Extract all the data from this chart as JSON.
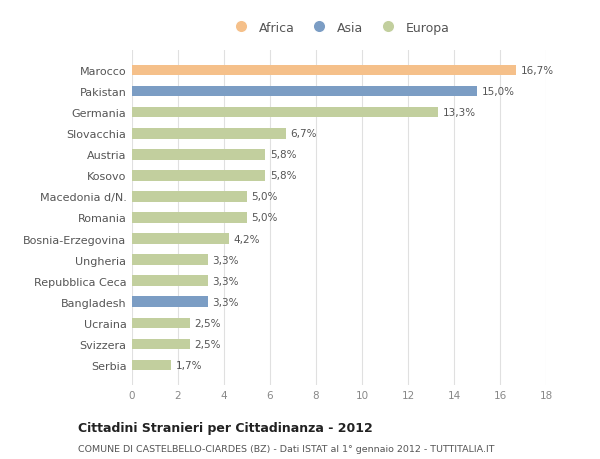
{
  "categories": [
    "Marocco",
    "Pakistan",
    "Germania",
    "Slovacchia",
    "Austria",
    "Kosovo",
    "Macedonia d/N.",
    "Romania",
    "Bosnia-Erzegovina",
    "Ungheria",
    "Repubblica Ceca",
    "Bangladesh",
    "Ucraina",
    "Svizzera",
    "Serbia"
  ],
  "values": [
    16.7,
    15.0,
    13.3,
    6.7,
    5.8,
    5.8,
    5.0,
    5.0,
    4.2,
    3.3,
    3.3,
    3.3,
    2.5,
    2.5,
    1.7
  ],
  "continents": [
    "Africa",
    "Asia",
    "Europa",
    "Europa",
    "Europa",
    "Europa",
    "Europa",
    "Europa",
    "Europa",
    "Europa",
    "Europa",
    "Asia",
    "Europa",
    "Europa",
    "Europa"
  ],
  "colors": {
    "Africa": "#F5C08A",
    "Asia": "#7B9DC4",
    "Europa": "#C2CF9E"
  },
  "labels": [
    "16,7%",
    "15,0%",
    "13,3%",
    "6,7%",
    "5,8%",
    "5,8%",
    "5,0%",
    "5,0%",
    "4,2%",
    "3,3%",
    "3,3%",
    "3,3%",
    "2,5%",
    "2,5%",
    "1,7%"
  ],
  "xlim": [
    0,
    18
  ],
  "xticks": [
    0,
    2,
    4,
    6,
    8,
    10,
    12,
    14,
    16,
    18
  ],
  "title": "Cittadini Stranieri per Cittadinanza - 2012",
  "subtitle": "COMUNE DI CASTELBELLO-CIARDES (BZ) - Dati ISTAT al 1° gennaio 2012 - TUTTITALIA.IT",
  "legend_labels": [
    "Africa",
    "Asia",
    "Europa"
  ],
  "legend_colors": [
    "#F5C08A",
    "#7B9DC4",
    "#C2CF9E"
  ],
  "background_color": "#ffffff",
  "bar_height": 0.5
}
